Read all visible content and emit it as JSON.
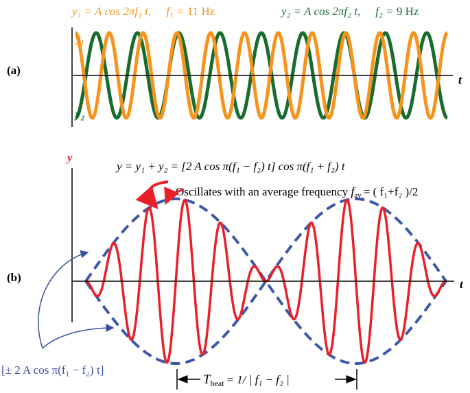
{
  "panel_a": {
    "label": "(a)",
    "axis_label": "t",
    "y1": {
      "equation": "y₁ = A cos 2πf₁ t,",
      "freq_symbol": "f₁ =",
      "freq": 11,
      "unit": "Hz",
      "curve_label": "y₁"
    },
    "y2": {
      "equation": "y₂ = A cos 2πf₂ t,",
      "freq_symbol": "f₂ =",
      "freq": 9,
      "unit": "Hz",
      "curve_label": "y₂"
    }
  },
  "panel_b": {
    "label": "(b)",
    "axis_label": "t",
    "y_label": "y",
    "equation": "y = y₁ + y₂ = [2 A cos π(f₁ − f₂) t] cos π(f₁ + f₂) t",
    "annotation": "Oscillates with an average frequency",
    "f_symbol": "f",
    "f_subscript": "av",
    "f_formula": "= ( f₁+f₂ )/2",
    "envelope_label": "[± 2 A cos π(f₁ − f₂) t]",
    "beat_symbol": "T",
    "beat_subscript": "beat",
    "beat_formula": "= 1/ | f₁ − f₂ |"
  }
}
